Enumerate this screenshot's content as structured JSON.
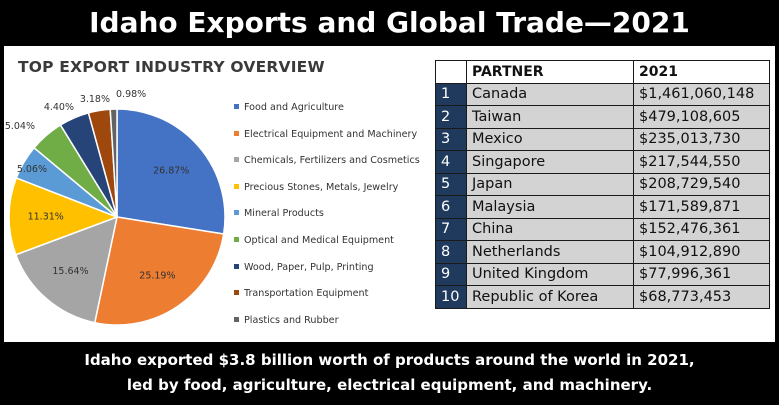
{
  "header": {
    "title": "Idaho Exports and Global Trade—2021"
  },
  "chart_data": [
    {
      "type": "pie",
      "title": "TOP EXPORT INDUSTRY OVERVIEW",
      "legend_position": "right",
      "slices": [
        {
          "label": "Food and Agriculture",
          "value": 26.87,
          "display": "26.87%",
          "color": "#4472c4"
        },
        {
          "label": "Electrical Equipment and Machinery",
          "value": 25.19,
          "display": "25.19%",
          "color": "#ed7d31"
        },
        {
          "label": "Chemicals, Fertilizers and Cosmetics",
          "value": 15.64,
          "display": "15.64%",
          "color": "#a5a5a5"
        },
        {
          "label": "Precious Stones, Metals, Jewelry",
          "value": 11.31,
          "display": "11.31%",
          "color": "#ffc000"
        },
        {
          "label": "Mineral Products",
          "value": 5.06,
          "display": "5.06%",
          "color": "#5b9bd5"
        },
        {
          "label": "Optical and Medical Equipment",
          "value": 5.04,
          "display": "5.04%",
          "color": "#70ad47"
        },
        {
          "label": "Wood, Paper, Pulp, Printing",
          "value": 4.4,
          "display": "4.40%",
          "color": "#264478"
        },
        {
          "label": "Transportation Equipment",
          "value": 3.18,
          "display": "3.18%",
          "color": "#9e480e"
        },
        {
          "label": "Plastics and Rubber",
          "value": 0.98,
          "display": "0.98%",
          "color": "#636363"
        }
      ]
    },
    {
      "type": "table",
      "columns": [
        "",
        "PARTNER",
        "2021"
      ],
      "rows": [
        {
          "rank": "1",
          "partner": "Canada",
          "value": "$1,461,060,148"
        },
        {
          "rank": "2",
          "partner": "Taiwan",
          "value": "$479,108,605"
        },
        {
          "rank": "3",
          "partner": "Mexico",
          "value": "$235,013,730"
        },
        {
          "rank": "4",
          "partner": "Singapore",
          "value": "$217,544,550"
        },
        {
          "rank": "5",
          "partner": "Japan",
          "value": "$208,729,540"
        },
        {
          "rank": "6",
          "partner": "Malaysia",
          "value": "$171,589,871"
        },
        {
          "rank": "7",
          "partner": "China",
          "value": "$152,476,361"
        },
        {
          "rank": "8",
          "partner": "Netherlands",
          "value": "$104,912,890"
        },
        {
          "rank": "9",
          "partner": "United Kingdom",
          "value": "$77,996,361"
        },
        {
          "rank": "10",
          "partner": "Republic of Korea",
          "value": "$68,773,453"
        }
      ]
    }
  ],
  "footer": {
    "line1": "Idaho exported $3.8 billion worth of products around the world in 2021,",
    "line2": "led by food, agriculture, electrical equipment, and machinery."
  }
}
